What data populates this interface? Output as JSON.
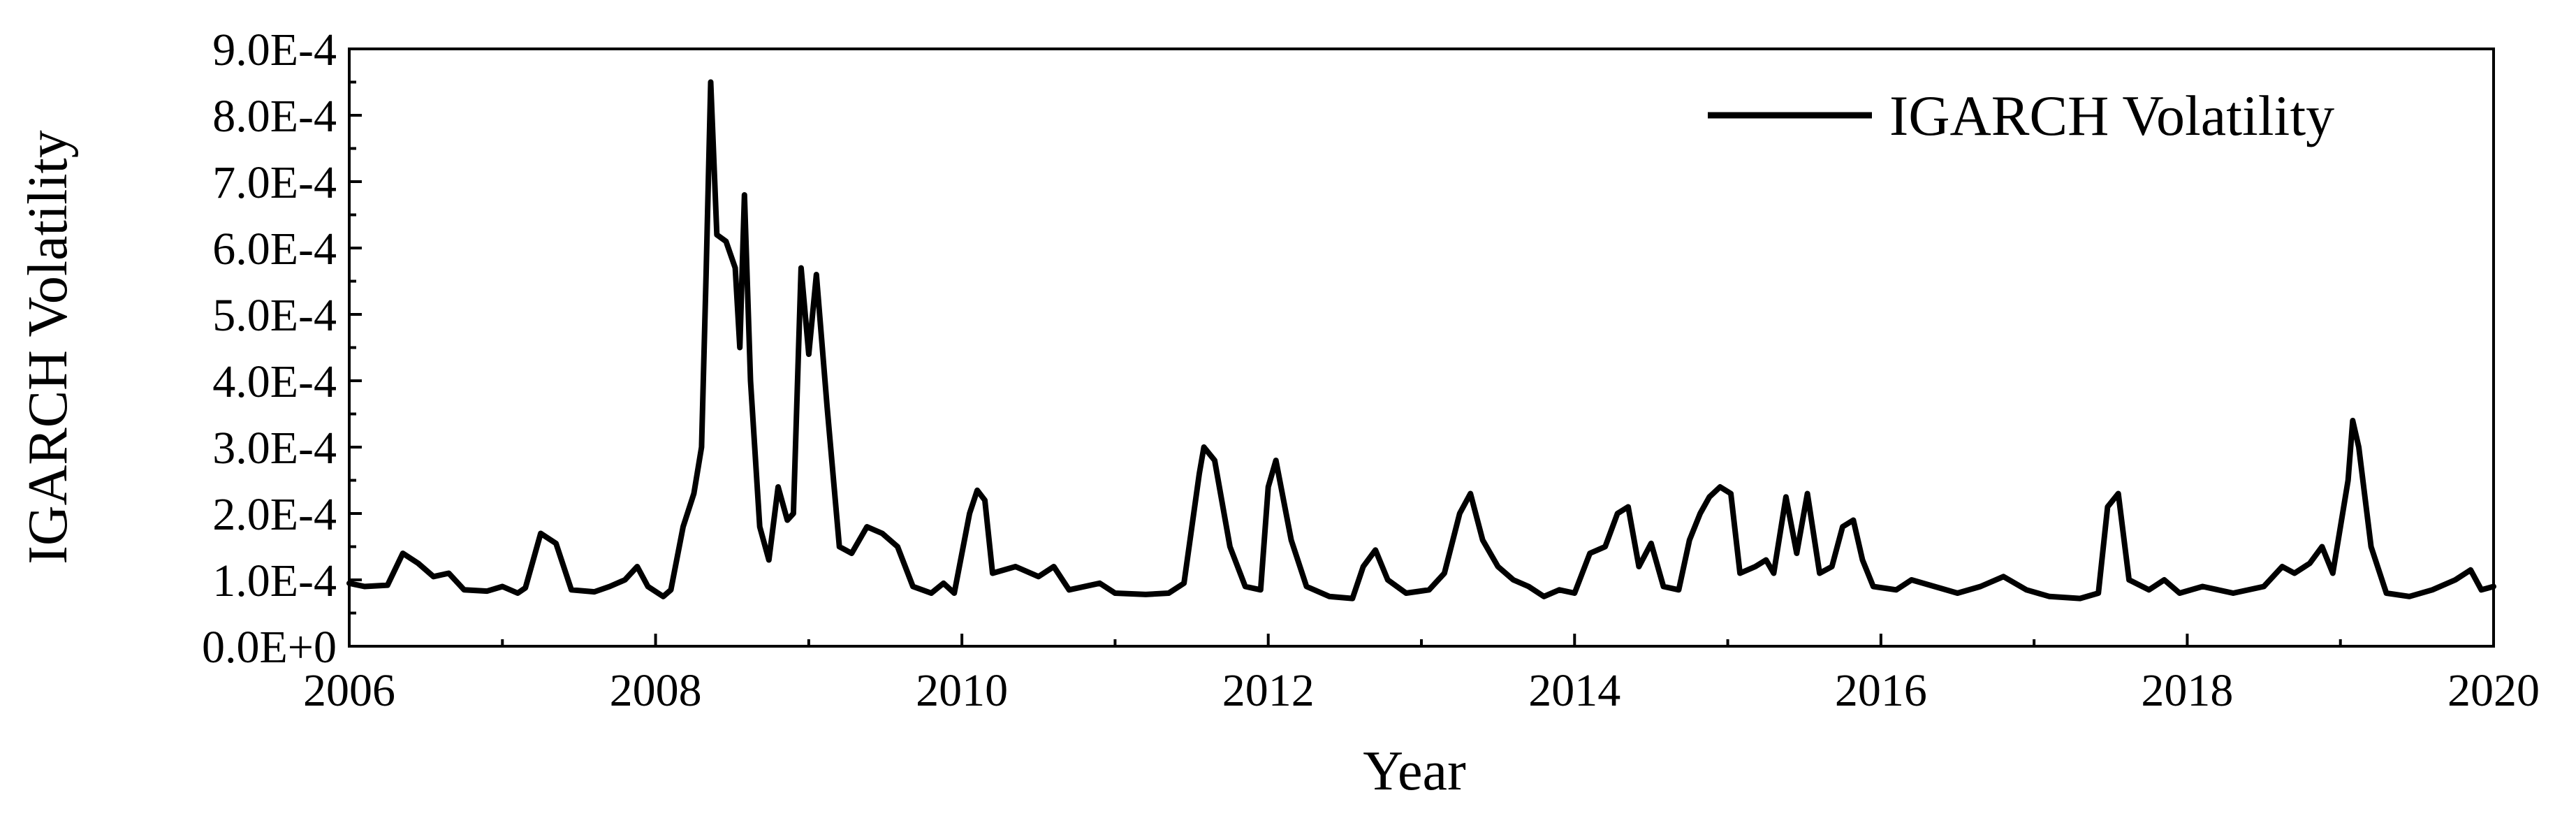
{
  "chart_data": {
    "type": "line",
    "title": "",
    "xlabel": "Year",
    "ylabel": "IGARCH Volatility",
    "xlim": [
      2006,
      2020
    ],
    "ylim": [
      0,
      0.0009
    ],
    "x_ticks": [
      2006,
      2008,
      2010,
      2012,
      2014,
      2016,
      2018,
      2020
    ],
    "x_tick_labels": [
      "2006",
      "2008",
      "2010",
      "2012",
      "2014",
      "2016",
      "2018",
      "2020"
    ],
    "y_ticks": [
      0,
      0.0001,
      0.0002,
      0.0003,
      0.0004,
      0.0005,
      0.0006,
      0.0007,
      0.0008,
      0.0009
    ],
    "y_tick_labels": [
      "0.0E+0",
      "1.0E-4",
      "2.0E-4",
      "3.0E-4",
      "4.0E-4",
      "5.0E-4",
      "6.0E-4",
      "7.0E-4",
      "8.0E-4",
      "9.0E-4"
    ],
    "grid": false,
    "legend_position": "top-right",
    "line_color": "#000000",
    "series": [
      {
        "name": "IGARCH Volatility",
        "points": [
          [
            2006.0,
            9.5e-05
          ],
          [
            2006.1,
            9e-05
          ],
          [
            2006.25,
            9.2e-05
          ],
          [
            2006.35,
            0.00014
          ],
          [
            2006.45,
            0.000125
          ],
          [
            2006.55,
            0.000105
          ],
          [
            2006.65,
            0.00011
          ],
          [
            2006.75,
            8.5e-05
          ],
          [
            2006.9,
            8.3e-05
          ],
          [
            2007.0,
            9e-05
          ],
          [
            2007.1,
            8e-05
          ],
          [
            2007.15,
            8.8e-05
          ],
          [
            2007.25,
            0.00017
          ],
          [
            2007.35,
            0.000155
          ],
          [
            2007.45,
            8.5e-05
          ],
          [
            2007.6,
            8.2e-05
          ],
          [
            2007.7,
            9e-05
          ],
          [
            2007.8,
            0.0001
          ],
          [
            2007.88,
            0.00012
          ],
          [
            2007.95,
            9e-05
          ],
          [
            2008.05,
            7.5e-05
          ],
          [
            2008.1,
            8.5e-05
          ],
          [
            2008.18,
            0.00018
          ],
          [
            2008.25,
            0.00023
          ],
          [
            2008.3,
            0.0003
          ],
          [
            2008.33,
            0.00056
          ],
          [
            2008.36,
            0.00085
          ],
          [
            2008.4,
            0.00062
          ],
          [
            2008.46,
            0.00061
          ],
          [
            2008.52,
            0.00057
          ],
          [
            2008.55,
            0.00045
          ],
          [
            2008.58,
            0.00068
          ],
          [
            2008.62,
            0.0004
          ],
          [
            2008.68,
            0.00018
          ],
          [
            2008.74,
            0.00013
          ],
          [
            2008.8,
            0.00024
          ],
          [
            2008.86,
            0.00019
          ],
          [
            2008.9,
            0.0002
          ],
          [
            2008.95,
            0.00057
          ],
          [
            2009.0,
            0.00044
          ],
          [
            2009.05,
            0.00056
          ],
          [
            2009.12,
            0.00036
          ],
          [
            2009.2,
            0.00015
          ],
          [
            2009.28,
            0.00014
          ],
          [
            2009.38,
            0.00018
          ],
          [
            2009.48,
            0.00017
          ],
          [
            2009.58,
            0.00015
          ],
          [
            2009.68,
            9e-05
          ],
          [
            2009.8,
            8e-05
          ],
          [
            2009.88,
            9.5e-05
          ],
          [
            2009.95,
            8e-05
          ],
          [
            2010.05,
            0.0002
          ],
          [
            2010.1,
            0.000235
          ],
          [
            2010.15,
            0.00022
          ],
          [
            2010.2,
            0.00011
          ],
          [
            2010.35,
            0.00012
          ],
          [
            2010.5,
            0.000105
          ],
          [
            2010.6,
            0.00012
          ],
          [
            2010.7,
            8.5e-05
          ],
          [
            2010.9,
            9.5e-05
          ],
          [
            2011.0,
            8e-05
          ],
          [
            2011.2,
            7.8e-05
          ],
          [
            2011.35,
            8e-05
          ],
          [
            2011.45,
            9.5e-05
          ],
          [
            2011.55,
            0.00026
          ],
          [
            2011.58,
            0.0003
          ],
          [
            2011.65,
            0.00028
          ],
          [
            2011.75,
            0.00015
          ],
          [
            2011.85,
            9e-05
          ],
          [
            2011.95,
            8.5e-05
          ],
          [
            2012.0,
            0.00024
          ],
          [
            2012.05,
            0.00028
          ],
          [
            2012.15,
            0.00016
          ],
          [
            2012.25,
            9e-05
          ],
          [
            2012.4,
            7.5e-05
          ],
          [
            2012.55,
            7.2e-05
          ],
          [
            2012.62,
            0.00012
          ],
          [
            2012.7,
            0.000145
          ],
          [
            2012.78,
            0.0001
          ],
          [
            2012.9,
            8e-05
          ],
          [
            2013.05,
            8.5e-05
          ],
          [
            2013.15,
            0.00011
          ],
          [
            2013.25,
            0.0002
          ],
          [
            2013.32,
            0.00023
          ],
          [
            2013.4,
            0.00016
          ],
          [
            2013.5,
            0.00012
          ],
          [
            2013.6,
            0.0001
          ],
          [
            2013.7,
            9e-05
          ],
          [
            2013.8,
            7.5e-05
          ],
          [
            2013.9,
            8.5e-05
          ],
          [
            2014.0,
            8e-05
          ],
          [
            2014.1,
            0.00014
          ],
          [
            2014.2,
            0.00015
          ],
          [
            2014.28,
            0.0002
          ],
          [
            2014.35,
            0.00021
          ],
          [
            2014.42,
            0.00012
          ],
          [
            2014.5,
            0.000155
          ],
          [
            2014.58,
            9e-05
          ],
          [
            2014.68,
            8.5e-05
          ],
          [
            2014.75,
            0.00016
          ],
          [
            2014.82,
            0.0002
          ],
          [
            2014.88,
            0.000225
          ],
          [
            2014.95,
            0.00024
          ],
          [
            2015.02,
            0.00023
          ],
          [
            2015.08,
            0.00011
          ],
          [
            2015.18,
            0.00012
          ],
          [
            2015.25,
            0.00013
          ],
          [
            2015.3,
            0.00011
          ],
          [
            2015.38,
            0.000225
          ],
          [
            2015.45,
            0.00014
          ],
          [
            2015.52,
            0.00023
          ],
          [
            2015.6,
            0.00011
          ],
          [
            2015.68,
            0.00012
          ],
          [
            2015.75,
            0.00018
          ],
          [
            2015.82,
            0.00019
          ],
          [
            2015.88,
            0.00013
          ],
          [
            2015.95,
            9e-05
          ],
          [
            2016.1,
            8.5e-05
          ],
          [
            2016.2,
            0.0001
          ],
          [
            2016.35,
            9e-05
          ],
          [
            2016.5,
            8e-05
          ],
          [
            2016.65,
            9e-05
          ],
          [
            2016.8,
            0.000105
          ],
          [
            2016.95,
            8.5e-05
          ],
          [
            2017.1,
            7.5e-05
          ],
          [
            2017.3,
            7.2e-05
          ],
          [
            2017.42,
            8e-05
          ],
          [
            2017.48,
            0.00021
          ],
          [
            2017.55,
            0.00023
          ],
          [
            2017.62,
            0.0001
          ],
          [
            2017.75,
            8.5e-05
          ],
          [
            2017.85,
            0.0001
          ],
          [
            2017.95,
            8e-05
          ],
          [
            2018.1,
            9e-05
          ],
          [
            2018.3,
            8e-05
          ],
          [
            2018.5,
            9e-05
          ],
          [
            2018.62,
            0.00012
          ],
          [
            2018.7,
            0.00011
          ],
          [
            2018.8,
            0.000125
          ],
          [
            2018.88,
            0.00015
          ],
          [
            2018.95,
            0.00011
          ],
          [
            2019.05,
            0.00025
          ],
          [
            2019.08,
            0.00034
          ],
          [
            2019.12,
            0.0003
          ],
          [
            2019.2,
            0.00015
          ],
          [
            2019.3,
            8e-05
          ],
          [
            2019.45,
            7.5e-05
          ],
          [
            2019.6,
            8.5e-05
          ],
          [
            2019.75,
            0.0001
          ],
          [
            2019.85,
            0.000115
          ],
          [
            2019.92,
            8.5e-05
          ],
          [
            2020.0,
            9e-05
          ]
        ]
      }
    ]
  }
}
